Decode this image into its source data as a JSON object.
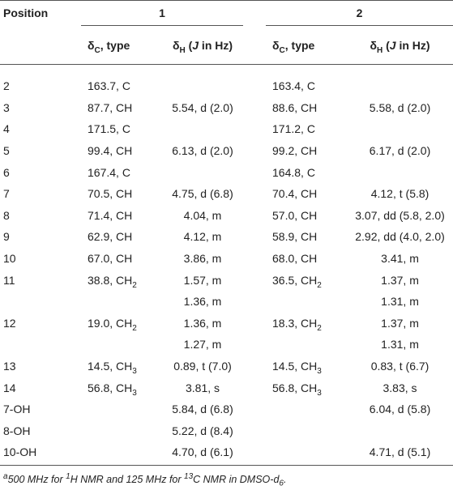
{
  "header": {
    "position": "Position",
    "compound_1": "1",
    "compound_2": "2",
    "sub_headers": [
      [
        "δ",
        "C",
        ", type"
      ],
      [
        "δ",
        "H",
        " (",
        "J",
        " in Hz)"
      ],
      [
        "δ",
        "C",
        ", type"
      ],
      [
        "δ",
        "H",
        " (",
        "J",
        " in Hz)"
      ]
    ]
  },
  "table": {
    "rows": [
      [
        "2",
        "163.7, C",
        null,
        "163.4, C",
        null
      ],
      [
        "3",
        "87.7, CH",
        "5.54, d (2.0)",
        "88.6, CH",
        "5.58, d (2.0)"
      ],
      [
        "4",
        "171.5, C",
        null,
        "171.2, C",
        null
      ],
      [
        "5",
        "99.4, CH",
        "6.13, d (2.0)",
        "99.2, CH",
        "6.17, d (2.0)"
      ],
      [
        "6",
        "167.4, C",
        null,
        "164.8, C",
        null
      ],
      [
        "7",
        "70.5, CH",
        "4.75, d (6.8)",
        "70.4, CH",
        "4.12, t (5.8)"
      ],
      [
        "8",
        "71.4, CH",
        "4.04, m",
        "57.0, CH",
        "3.07, dd (5.8, 2.0)"
      ],
      [
        "9",
        "62.9, CH",
        "4.12, m",
        "58.9, CH",
        "2.92, dd (4.0, 2.0)"
      ],
      [
        "10",
        "67.0, CH",
        "3.86, m",
        "68.0, CH",
        "3.41, m"
      ],
      [
        "11",
        [
          "38.8, CH",
          "2"
        ],
        "1.57, m",
        [
          "36.5, CH",
          "2"
        ],
        "1.37, m"
      ],
      [
        null,
        null,
        "1.36, m",
        null,
        "1.31, m"
      ],
      [
        "12",
        [
          "19.0, CH",
          "2"
        ],
        "1.36, m",
        [
          "18.3, CH",
          "2"
        ],
        "1.37, m"
      ],
      [
        null,
        null,
        "1.27, m",
        null,
        "1.31, m"
      ],
      [
        "13",
        [
          "14.5, CH",
          "3"
        ],
        "0.89, t (7.0)",
        [
          "14.5, CH",
          "3"
        ],
        "0.83, t (6.7)"
      ],
      [
        "14",
        [
          "56.8, CH",
          "3"
        ],
        "3.81, s",
        [
          "56.8, CH",
          "3"
        ],
        "3.83, s"
      ],
      [
        "7-OH",
        null,
        "5.84, d (6.8)",
        null,
        "6.04, d (5.8)"
      ],
      [
        "8-OH",
        null,
        "5.22, d (8.4)",
        null,
        null
      ],
      [
        "10-OH",
        null,
        "4.70, d (6.1)",
        null,
        "4.71, d (5.1)"
      ]
    ]
  },
  "footnote": [
    "a",
    "500 MHz for ",
    "1",
    "H NMR and 125 MHz for ",
    "13",
    "C NMR in DMSO-",
    "d",
    "6",
    "."
  ]
}
